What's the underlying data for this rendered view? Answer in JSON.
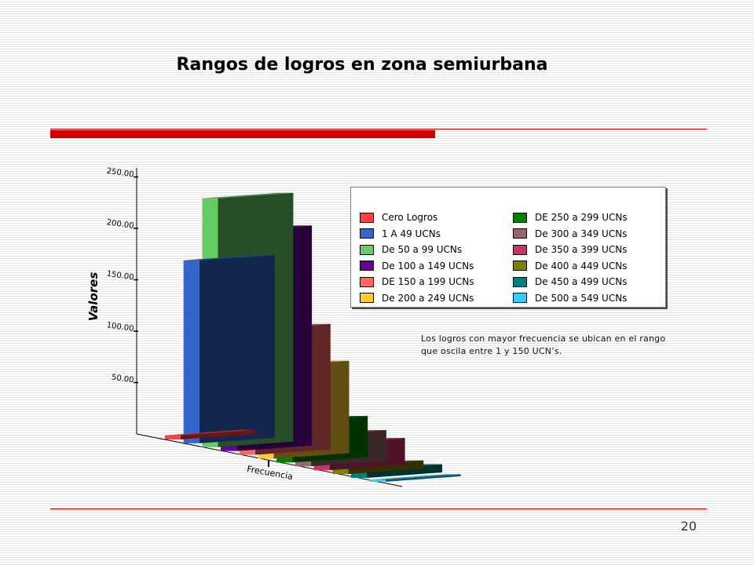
{
  "slide": {
    "title": "Rangos de logros en zona semiurbana",
    "page_number": "20",
    "note": "Los logros con mayor frecuencia se ubican en el rango que oscila entre 1 y 150 UCN’s."
  },
  "colors": {
    "rule": "#cc0000",
    "background_stripe": "#e4e4e4"
  },
  "chart_data": {
    "type": "bar",
    "style": "3d",
    "xlabel": "Frecuencia",
    "ylabel": "Valores",
    "ylim": [
      0,
      250
    ],
    "ytick_labels": [
      "50.00",
      "100.00",
      "150.00",
      "200.00",
      "250.00"
    ],
    "legend_position": "top-right",
    "series": [
      {
        "name": "Cero Logros",
        "values": [
          4
        ],
        "color": "#ff4040"
      },
      {
        "name": "1 A 49 UCNs",
        "values": [
          178
        ],
        "color": "#3366cc"
      },
      {
        "name": "De 50 a 99 UCNs",
        "values": [
          242
        ],
        "color": "#66cc66"
      },
      {
        "name": "De 100 a 149 UCNs",
        "values": [
          214
        ],
        "color": "#660099"
      },
      {
        "name": "DE 150 a 199 UCNs",
        "values": [
          122
        ],
        "color": "#ff6666"
      },
      {
        "name": "De 200 a 249 UCNs",
        "values": [
          90
        ],
        "color": "#ffcc33"
      },
      {
        "name": "DE 250 a 299 UCNs",
        "values": [
          40
        ],
        "color": "#008000"
      },
      {
        "name": "De 300 a 349 UCNs",
        "values": [
          30
        ],
        "color": "#996666"
      },
      {
        "name": "De 350 a 399 UCNs",
        "values": [
          26
        ],
        "color": "#cc3366"
      },
      {
        "name": "De 400 a 449 UCNs",
        "values": [
          8
        ],
        "color": "#808000"
      },
      {
        "name": "De 450 a 499 UCNs",
        "values": [
          8
        ],
        "color": "#008080"
      },
      {
        "name": "De 500 a 549 UCNs",
        "values": [
          2
        ],
        "color": "#33ccff"
      }
    ]
  }
}
